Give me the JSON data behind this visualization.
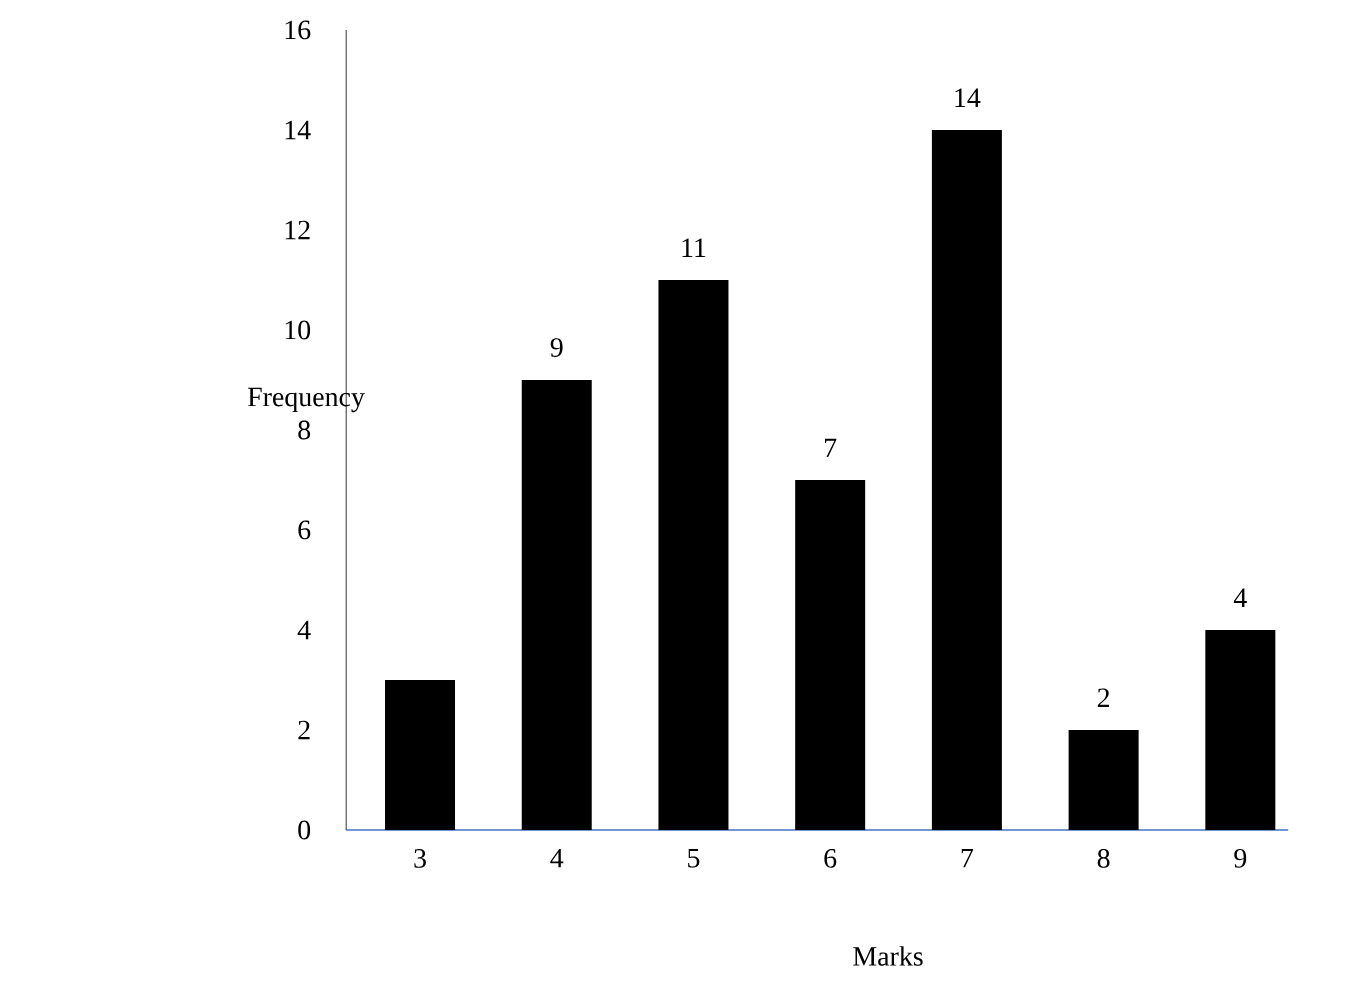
{
  "chart_data": {
    "type": "bar",
    "xlabel": "Marks",
    "ylabel": "Frequency",
    "categories": [
      "3",
      "4",
      "5",
      "6",
      "7",
      "8",
      "9"
    ],
    "values": [
      3,
      9,
      11,
      7,
      14,
      2,
      4
    ],
    "value_labels": [
      null,
      "9",
      "11",
      "7",
      "14",
      "2",
      "4"
    ],
    "color": "#000000",
    "ylim": [
      0,
      16
    ],
    "yticks": [
      0,
      2,
      4,
      6,
      8,
      10,
      12,
      14,
      16
    ],
    "grid": false
  }
}
